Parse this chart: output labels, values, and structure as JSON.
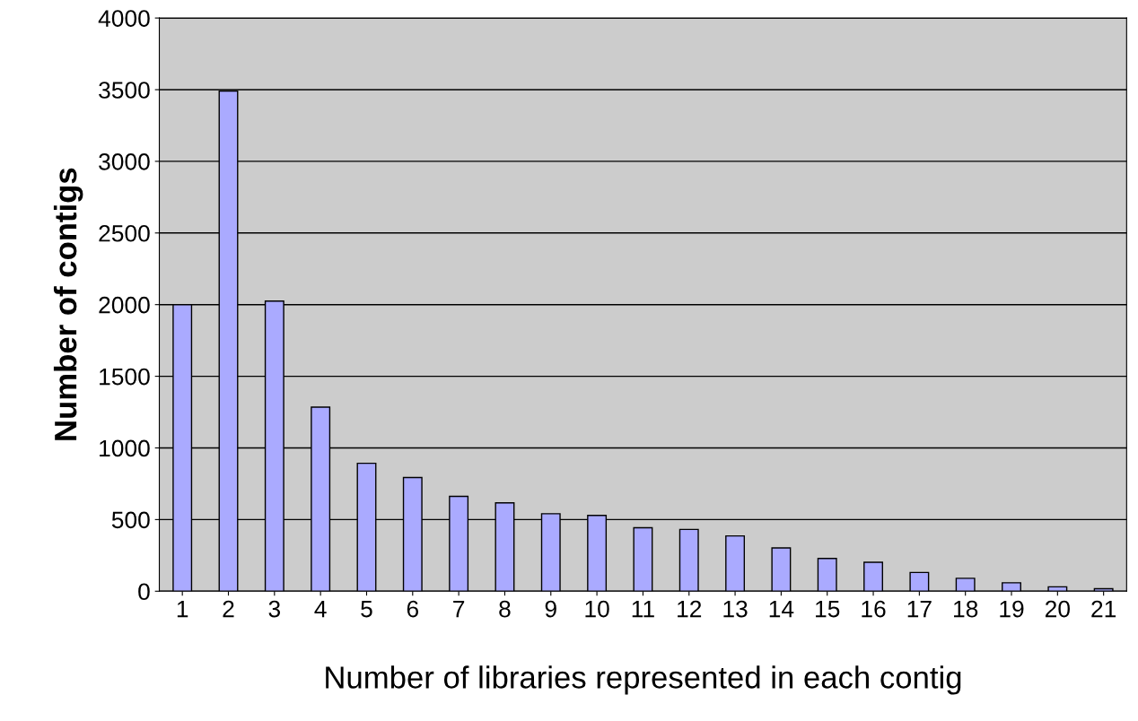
{
  "chart_data": {
    "type": "bar",
    "xlabel": "Number of libraries represented in each contig",
    "ylabel": "Number of contigs",
    "categories": [
      "1",
      "2",
      "3",
      "4",
      "5",
      "6",
      "7",
      "8",
      "9",
      "10",
      "11",
      "12",
      "13",
      "14",
      "15",
      "16",
      "17",
      "18",
      "19",
      "20",
      "21"
    ],
    "values": [
      2000,
      3490,
      2025,
      1285,
      893,
      793,
      662,
      617,
      541,
      529,
      443,
      431,
      386,
      302,
      229,
      202,
      131,
      90,
      59,
      31,
      17
    ],
    "color": "#aaaaff",
    "ylim": [
      0,
      4000
    ],
    "yticks": [
      0,
      500,
      1000,
      1500,
      2000,
      2500,
      3000,
      3500,
      4000
    ],
    "grid": "y"
  }
}
